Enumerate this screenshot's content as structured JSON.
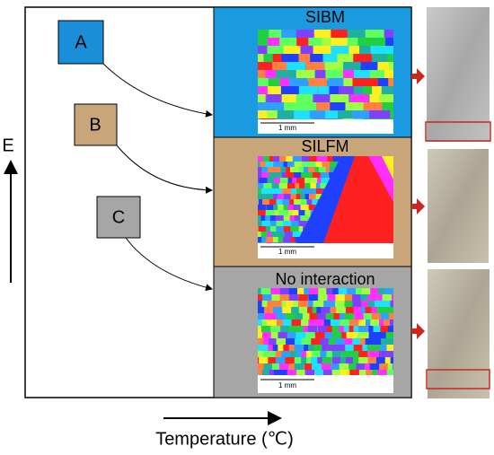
{
  "labels": {
    "a": "A",
    "b": "B",
    "c": "C"
  },
  "panels": [
    {
      "title": "SIBM",
      "scale": "1 mm"
    },
    {
      "title": "SILFM",
      "scale": "1 mm"
    },
    {
      "title": "No interaction",
      "scale": "1 mm"
    }
  ],
  "axes": {
    "y": "E",
    "x": "Temperature (℃)"
  }
}
